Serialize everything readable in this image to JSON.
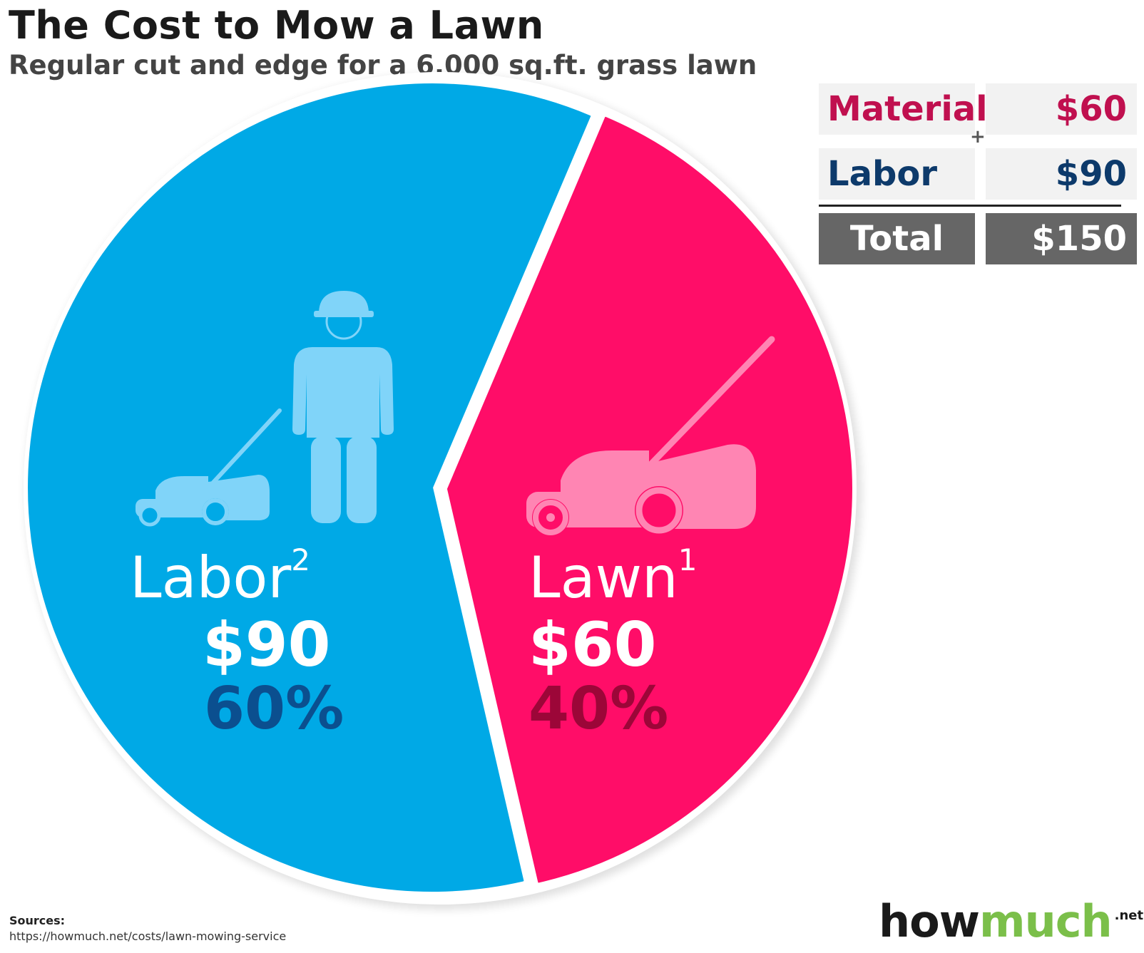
{
  "chart_data": {
    "type": "pie",
    "title": "The Cost to Mow a Lawn",
    "subtitle": "Regular cut and edge for a 6,000 sq.ft. grass lawn",
    "categories": [
      "Labor",
      "Lawn"
    ],
    "values": [
      90,
      60
    ],
    "slices": [
      {
        "label": "Labor",
        "superscript": "2",
        "value": 90,
        "value_label": "$90",
        "percent": 60,
        "percent_label": "60%",
        "color": "#00a9e6",
        "icon": "worker-with-mower-icon"
      },
      {
        "label": "Lawn",
        "superscript": "1",
        "value": 60,
        "value_label": "$60",
        "percent": 40,
        "percent_label": "40%",
        "color": "#ff0d68",
        "icon": "lawn-mower-icon"
      }
    ],
    "legend": "none"
  },
  "cost_table": {
    "rows": [
      {
        "label": "Material",
        "value": "$60",
        "label_color": "#c0104f",
        "value_color": "#c0104f"
      },
      {
        "label": "Labor",
        "value": "$90",
        "label_color": "#0d3a6b",
        "value_color": "#0d3a6b"
      }
    ],
    "operator": "+",
    "total": {
      "label": "Total",
      "value": "$150"
    }
  },
  "sources": {
    "label": "Sources:",
    "url": "https://howmuch.net/costs/lawn-mowing-service"
  },
  "logo": {
    "part1": "how",
    "part2": "much",
    "suffix": ".net"
  },
  "colors": {
    "labor_slice": "#00a9e6",
    "lawn_slice": "#ff0d68",
    "labor_icon": "#80d4f9",
    "lawn_icon": "#ff85b3",
    "labor_percent": "#0b4f8f",
    "lawn_percent": "#9c0638"
  }
}
